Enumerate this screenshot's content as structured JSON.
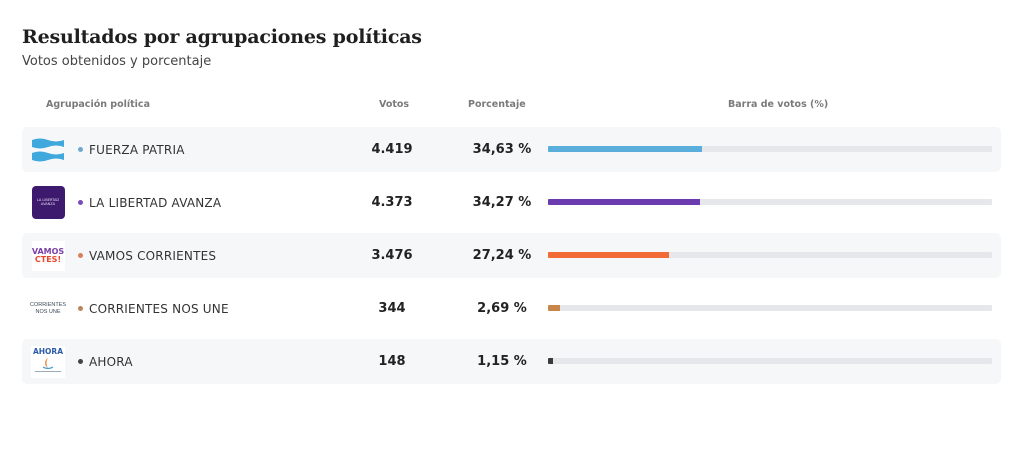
{
  "header": {
    "title": "Resultados por agrupaciones políticas",
    "subtitle": "Votos obtenidos y porcentaje"
  },
  "table": {
    "columns": [
      "Agrupación política",
      "Votos",
      "Porcentaje",
      "Barra de votos (%)"
    ],
    "rows": [
      {
        "name": "FUERZA PATRIA",
        "votes": "4.419",
        "percent_label": "34,63 %",
        "percent": 34.63,
        "color": "#5aaedc",
        "logo": "argentina-flag-logo"
      },
      {
        "name": "LA LIBERTAD AVANZA",
        "votes": "4.373",
        "percent_label": "34,27 %",
        "percent": 34.27,
        "color": "#6c3bb0",
        "logo": "la-libertad-avanza-logo"
      },
      {
        "name": "VAMOS CORRIENTES",
        "votes": "3.476",
        "percent_label": "27,24 %",
        "percent": 27.24,
        "color": "#f26a35",
        "logo": "vamos-corrientes-logo"
      },
      {
        "name": "CORRIENTES NOS UNE",
        "votes": "344",
        "percent_label": "2,69 %",
        "percent": 2.69,
        "color": "#c8864a",
        "logo": "corrientes-nos-une-logo"
      },
      {
        "name": "AHORA",
        "votes": "148",
        "percent_label": "1,15 %",
        "percent": 1.15,
        "color": "#3a3a3a",
        "logo": "ahora-logo"
      }
    ]
  },
  "logos": {
    "lla_text": "LA LIBERTAD AVANZA",
    "vamos_line1": "VAMOS",
    "vamos_line2": "CTES!",
    "cnu_line1": "CORRIENTES",
    "cnu_line2": "NOS UNE",
    "ahora_text": "AHORA"
  }
}
